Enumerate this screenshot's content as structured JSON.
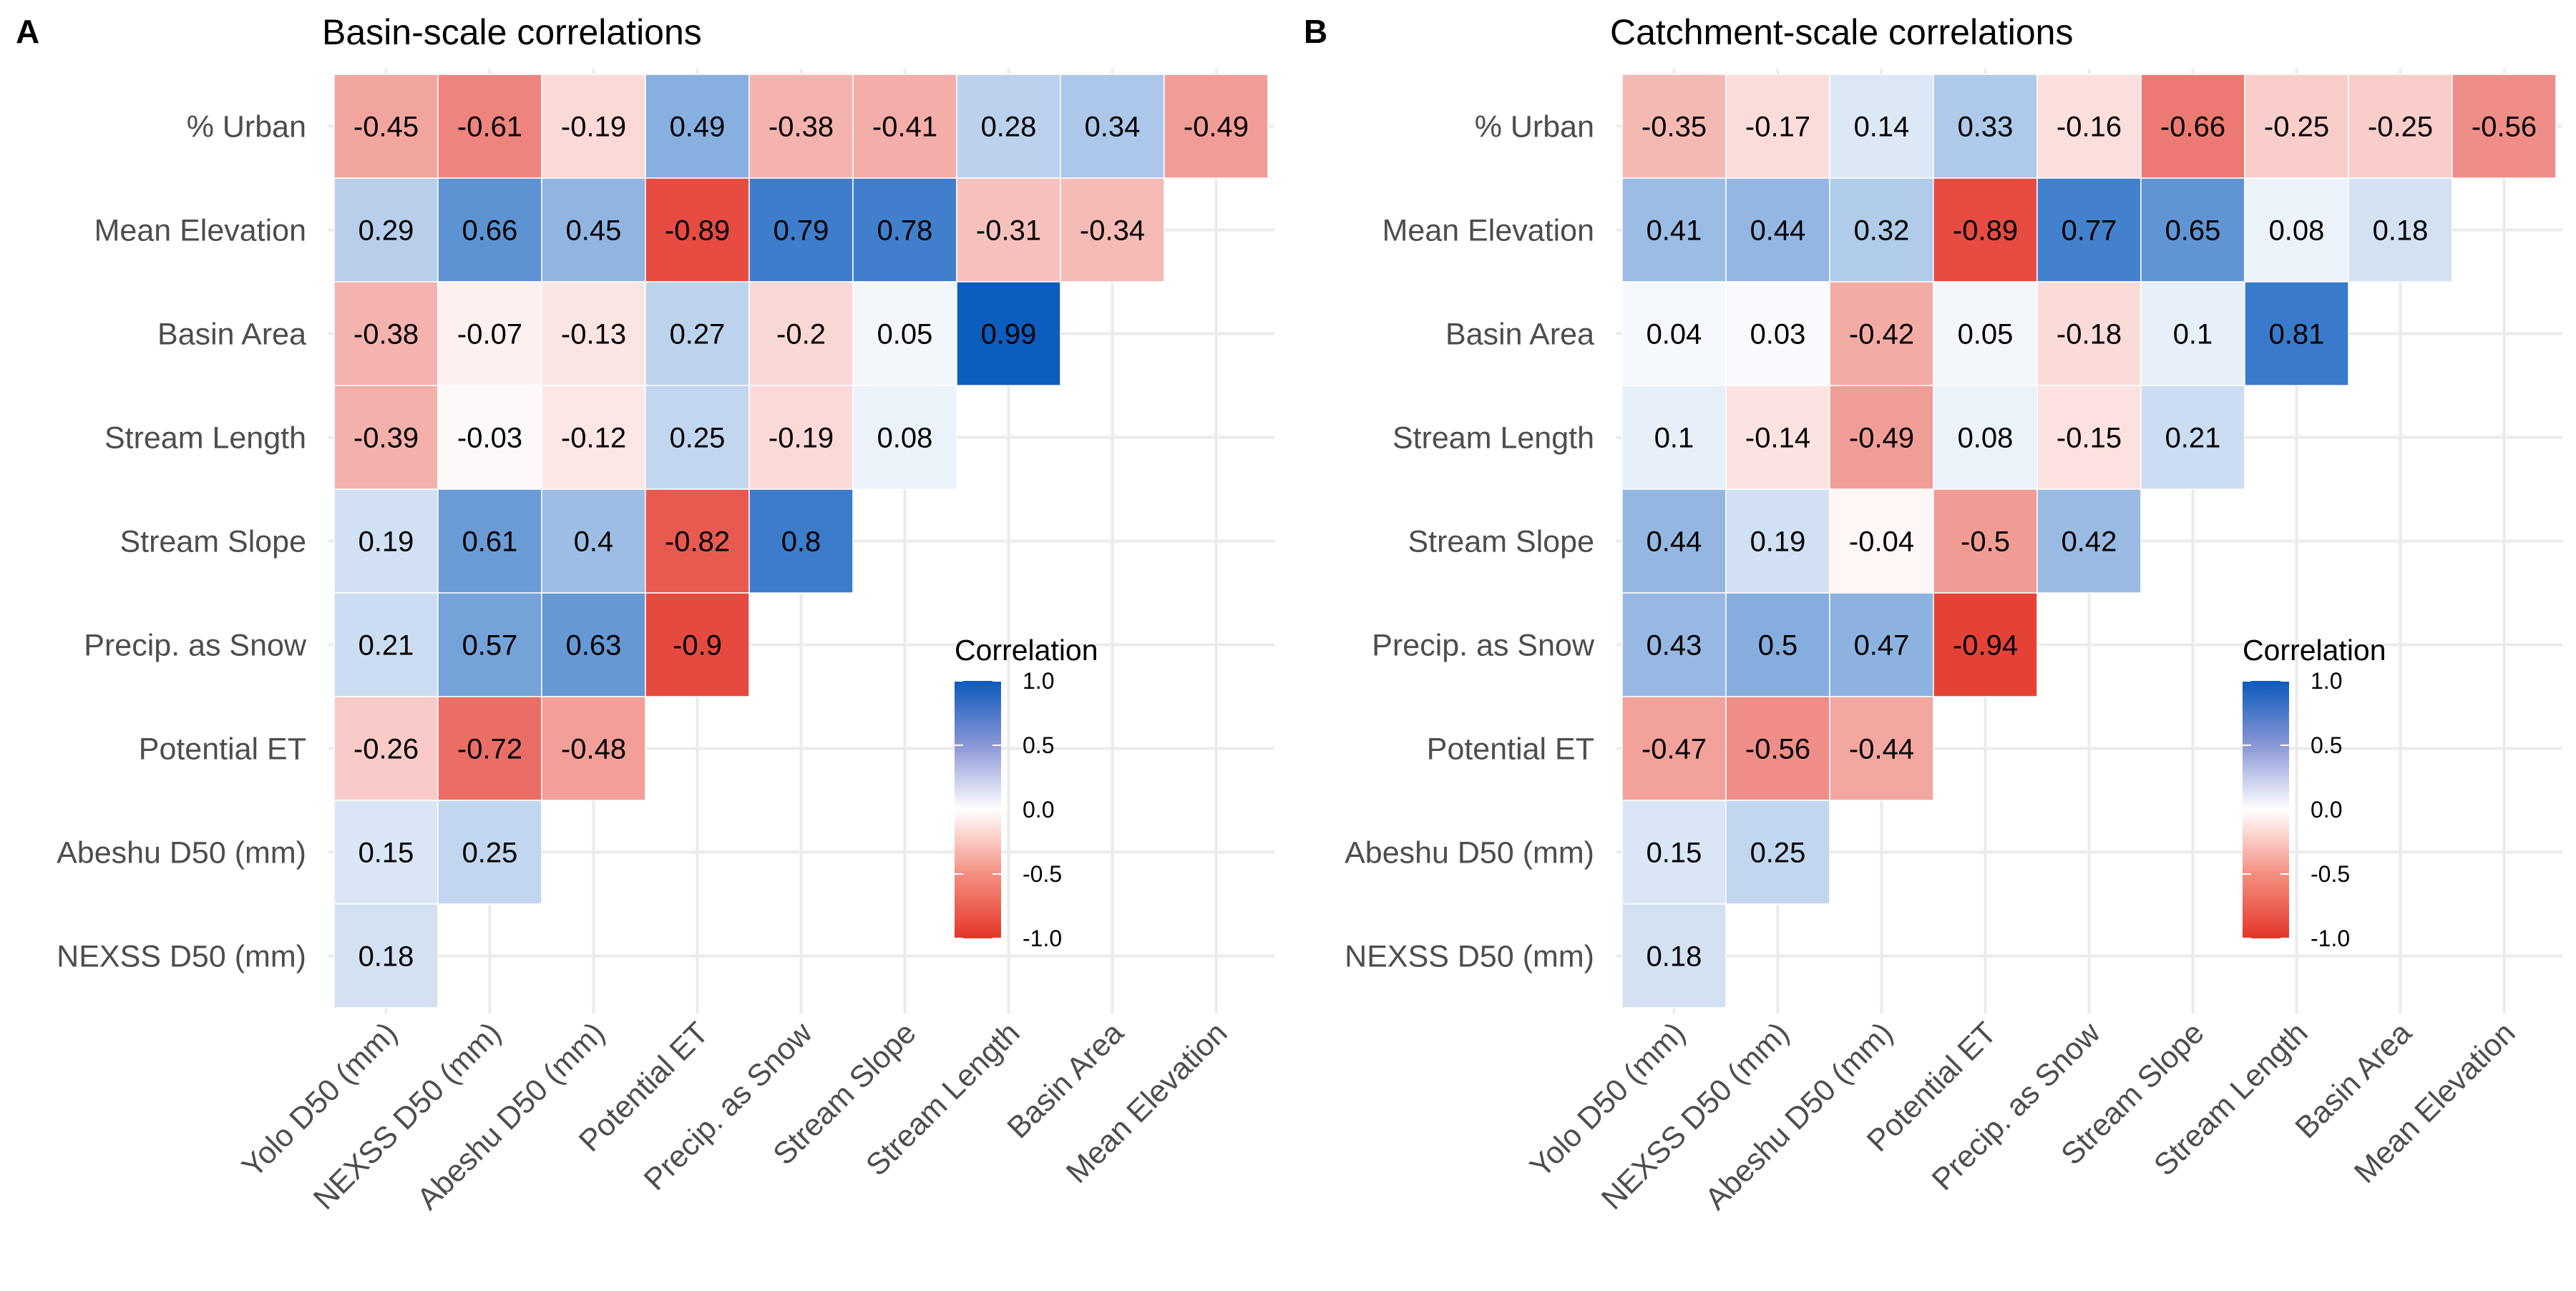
{
  "chart_data": [
    {
      "type": "heatmap",
      "panel": "A",
      "title": "Basin-scale correlations",
      "y_labels": [
        "% Urban",
        "Mean Elevation",
        "Basin Area",
        "Stream Length",
        "Stream Slope",
        "Precip. as Snow",
        "Potential ET",
        "Abeshu D50 (mm)",
        "NEXSS D50 (mm)"
      ],
      "x_labels": [
        "Yolo D50 (mm)",
        "NEXSS D50 (mm)",
        "Abeshu D50 (mm)",
        "Potential ET",
        "Precip. as Snow",
        "Stream Slope",
        "Stream Length",
        "Basin Area",
        "Mean Elevation"
      ],
      "values": [
        [
          -0.45,
          -0.61,
          -0.19,
          0.49,
          -0.38,
          -0.41,
          0.28,
          0.34,
          -0.49
        ],
        [
          0.29,
          0.66,
          0.45,
          -0.89,
          0.79,
          0.78,
          -0.31,
          -0.34
        ],
        [
          -0.38,
          -0.07,
          -0.13,
          0.27,
          -0.2,
          0.05,
          0.99
        ],
        [
          -0.39,
          -0.03,
          -0.12,
          0.25,
          -0.19,
          0.08
        ],
        [
          0.19,
          0.61,
          0.4,
          -0.82,
          0.8
        ],
        [
          0.21,
          0.57,
          0.63,
          -0.9
        ],
        [
          -0.26,
          -0.72,
          -0.48
        ],
        [
          0.15,
          0.25
        ],
        [
          0.18
        ]
      ],
      "legend": {
        "title": "Correlation",
        "ticks": [
          "1.0",
          "0.5",
          "0.0",
          "-0.5",
          "-1.0"
        ],
        "range": [
          -1,
          1
        ],
        "colors": {
          "low": "#e3362a",
          "mid": "#ffffff",
          "high": "#0b5bbd"
        }
      }
    },
    {
      "type": "heatmap",
      "panel": "B",
      "title": "Catchment-scale correlations",
      "y_labels": [
        "% Urban",
        "Mean Elevation",
        "Basin Area",
        "Stream Length",
        "Stream Slope",
        "Precip. as Snow",
        "Potential ET",
        "Abeshu D50 (mm)",
        "NEXSS D50 (mm)"
      ],
      "x_labels": [
        "Yolo D50 (mm)",
        "NEXSS D50 (mm)",
        "Abeshu D50 (mm)",
        "Potential ET",
        "Precip. as Snow",
        "Stream Slope",
        "Stream Length",
        "Basin Area",
        "Mean Elevation"
      ],
      "values": [
        [
          -0.35,
          -0.17,
          0.14,
          0.33,
          -0.16,
          -0.66,
          -0.25,
          -0.25,
          -0.56
        ],
        [
          0.41,
          0.44,
          0.32,
          -0.89,
          0.77,
          0.65,
          0.08,
          0.18
        ],
        [
          0.04,
          0.03,
          -0.42,
          0.05,
          -0.18,
          0.1,
          0.81
        ],
        [
          0.1,
          -0.14,
          -0.49,
          0.08,
          -0.15,
          0.21
        ],
        [
          0.44,
          0.19,
          -0.04,
          -0.5,
          0.42
        ],
        [
          0.43,
          0.5,
          0.47,
          -0.94
        ],
        [
          -0.47,
          -0.56,
          -0.44
        ],
        [
          0.15,
          0.25
        ],
        [
          0.18
        ]
      ],
      "legend": {
        "title": "Correlation",
        "ticks": [
          "1.0",
          "0.5",
          "0.0",
          "-0.5",
          "-1.0"
        ],
        "range": [
          -1,
          1
        ],
        "colors": {
          "low": "#e3362a",
          "mid": "#ffffff",
          "high": "#0b5bbd"
        }
      }
    }
  ]
}
